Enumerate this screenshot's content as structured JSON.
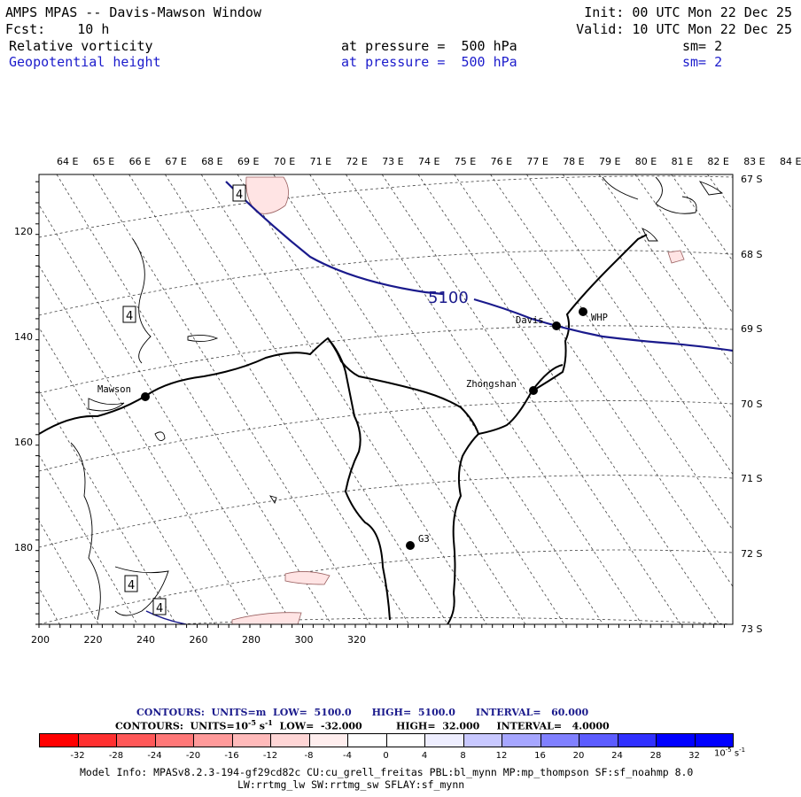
{
  "header": {
    "title": "AMPS MPAS -- Davis-Mawson Window",
    "forecast": "Fcst:    10 h",
    "init": "Init: 00 UTC Mon 22 Dec 25",
    "valid": "Valid: 10 UTC Mon 22 Dec 25",
    "field1": {
      "name": "Relative vorticity",
      "level": "at pressure =  500 hPa",
      "sm": "sm= 2"
    },
    "field2": {
      "name": "Geopotential height",
      "level": "at pressure =  500 hPa",
      "sm": "sm= 2"
    }
  },
  "map": {
    "lon_labels": [
      "64 E",
      "65 E",
      "66 E",
      "67 E",
      "68 E",
      "69 E",
      "70 E",
      "71 E",
      "72 E",
      "73 E",
      "74 E",
      "75 E",
      "76 E",
      "77 E",
      "78 E",
      "79 E",
      "80 E",
      "81 E",
      "82 E",
      "83 E",
      "84 E"
    ],
    "lat_labels": [
      "67 S",
      "68 S",
      "69 S",
      "70 S",
      "71 S",
      "72 S",
      "73 S"
    ],
    "x_ticks": [
      "200",
      "220",
      "240",
      "260",
      "280",
      "300",
      "320"
    ],
    "y_ticks": [
      "120",
      "140",
      "160",
      "180"
    ],
    "stations": [
      {
        "name": "Mawson"
      },
      {
        "name": "Davis"
      },
      {
        "name": "WHP"
      },
      {
        "name": "Zhongshan"
      },
      {
        "name": "G3"
      }
    ],
    "contour_labels": [
      "5100",
      "4",
      "4",
      "4",
      "4"
    ],
    "height_contour_value": "5100"
  },
  "contour_info": {
    "height": "CONTOURS:  UNITS=m  LOW=  5100.0      HIGH=  5100.0      INTERVAL=   60.000",
    "vort_prefix": "CONTOURS:  UNITS=10",
    "vort_exp": "-5",
    "vort_suffix": " s",
    "vort_exp2": "-1",
    "vort_rest": "  LOW=  -32.000          HIGH=  32.000     INTERVAL=   4.0000"
  },
  "colorbar": {
    "labels": [
      "-32",
      "-28",
      "-24",
      "-20",
      "-16",
      "-12",
      "-8",
      "-4",
      "0",
      "4",
      "8",
      "12",
      "16",
      "20",
      "24",
      "28",
      "32"
    ],
    "units": "10",
    "units_exp": "-5",
    "units_suffix": " s",
    "units_exp2": "-1",
    "colors": [
      "#ff0000",
      "#ff3030",
      "#ff5858",
      "#ff7878",
      "#ff9a9a",
      "#ffbaba",
      "#ffd6d6",
      "#ffeeee",
      "#ffffff",
      "#ffffff",
      "#eeeeff",
      "#c8c8ff",
      "#a6a6ff",
      "#8080ff",
      "#5c5cff",
      "#3030ff",
      "#0000ff",
      "#0000ff"
    ]
  },
  "footer": {
    "line1": "Model Info: MPASv8.2.3-194-gf29cd82c CU:cu_grell_freitas PBL:bl_mynn MP:mp_thompson SF:sf_noahmp 8.0",
    "line2": "LW:rrtmg_lw SW:rrtmg_sw SFLAY:sf_mynn"
  }
}
